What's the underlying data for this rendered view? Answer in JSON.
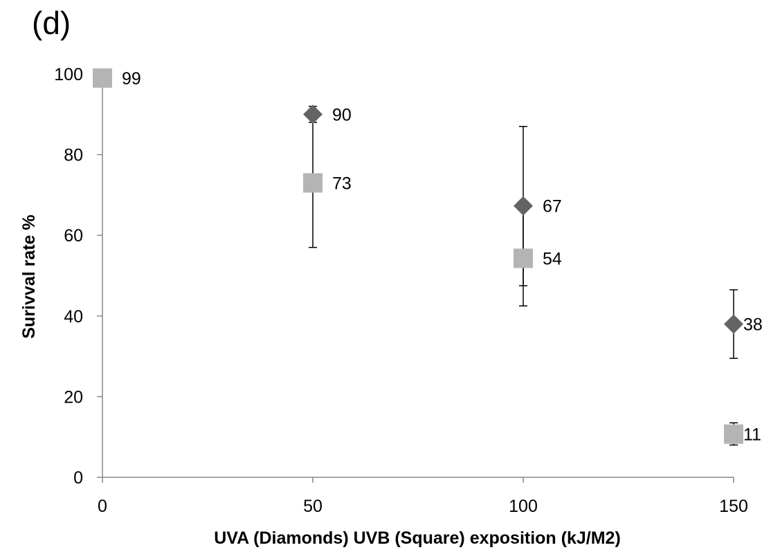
{
  "panel_label": "(d)",
  "chart_data": {
    "type": "scatter",
    "title": "",
    "xlabel": "UVA (Diamonds) UVB (Square) exposition (kJ/M2)",
    "ylabel": "Surivval rate %",
    "xlim": [
      0,
      150
    ],
    "ylim": [
      0,
      100
    ],
    "xticks": [
      0,
      50,
      100,
      150
    ],
    "yticks": [
      0,
      20,
      40,
      60,
      80,
      100
    ],
    "grid": false,
    "legend": "none",
    "series": [
      {
        "marker": "diamond",
        "color": "#646464",
        "points": [
          {
            "x": 50,
            "y": 90,
            "label": "90",
            "err_low": 88,
            "err_high": 92
          },
          {
            "x": 100,
            "y": 67.3,
            "label": "67",
            "err_low": 47.5,
            "err_high": 87
          },
          {
            "x": 150,
            "y": 38,
            "label": "38",
            "err_low": 29.5,
            "err_high": 46.5
          }
        ]
      },
      {
        "marker": "square",
        "color": "#b4b4b4",
        "points": [
          {
            "x": 0,
            "y": 99,
            "label": "99",
            "err_low": 99,
            "err_high": 99
          },
          {
            "x": 50,
            "y": 73,
            "label": "73",
            "err_low": 57,
            "err_high": 89
          },
          {
            "x": 100,
            "y": 54.3,
            "label": "54",
            "err_low": 42.5,
            "err_high": 66
          },
          {
            "x": 150,
            "y": 10.7,
            "label": "11",
            "err_low": 8,
            "err_high": 13.5
          }
        ]
      }
    ]
  }
}
